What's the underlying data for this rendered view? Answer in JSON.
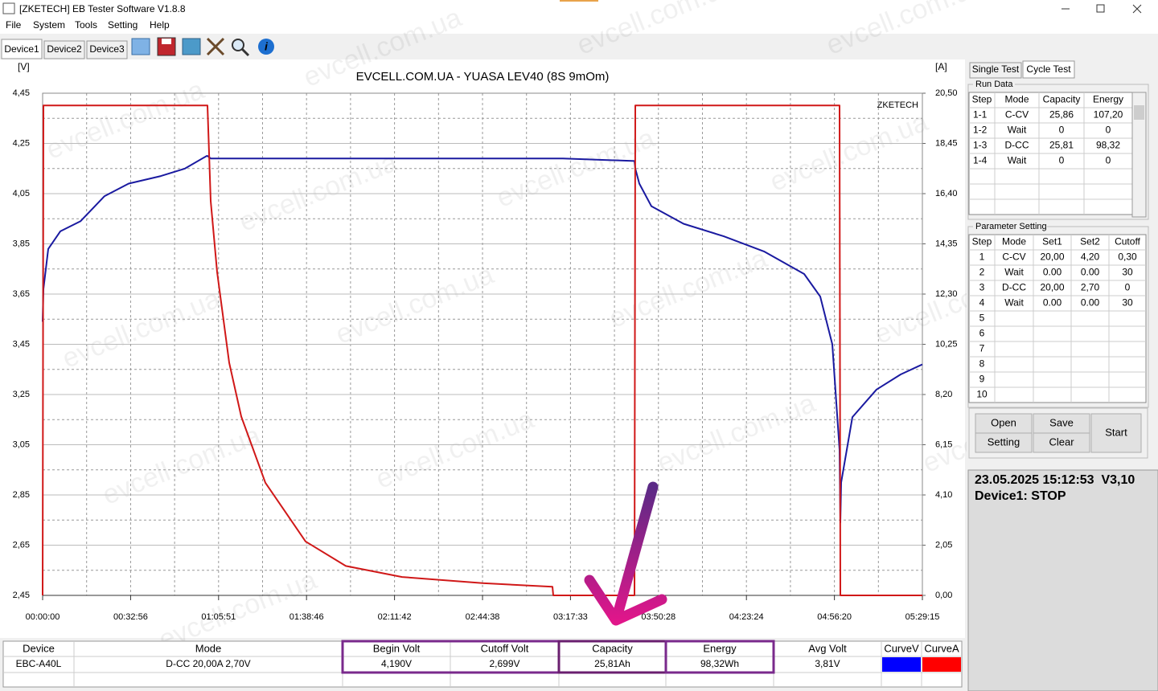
{
  "window": {
    "title": "[ZKETECH] EB Tester Software V1.8.8"
  },
  "menu": [
    "File",
    "System",
    "Tools",
    "Setting",
    "Help"
  ],
  "tabs": [
    "Device1",
    "Device2",
    "Device3"
  ],
  "background_watermark": "evcell.com.ua",
  "chart_data": {
    "type": "line",
    "title": "EVCELL.COM.UA - YUASA LEV40 (8S 9mOm)",
    "y_label": "[V]",
    "y2_label": "[A]",
    "watermark": "ZKETECH",
    "x": [
      0,
      18,
      126,
      397,
      849,
      1390,
      1932,
      2655,
      3196,
      3684,
      3702,
      3774,
      3919,
      4189,
      4460,
      5002,
      5905,
      6808,
      8072,
      9878,
      11449,
      11467,
      11684,
      13291,
      13309,
      13399,
      13670,
      14392,
      15295,
      16198,
      17101,
      17462,
      17733,
      17895,
      17913,
      17932,
      18184,
      18726,
      19268,
      19755
    ],
    "series": [
      {
        "name": "CurveV",
        "color": "#0000ff",
        "line_color": "#1a1aa0",
        "values": [
          3.54,
          3.67,
          3.83,
          3.9,
          3.94,
          4.04,
          4.09,
          4.12,
          4.15,
          4.2,
          4.2,
          4.19,
          4.19,
          4.19,
          4.19,
          4.19,
          4.19,
          4.19,
          4.19,
          4.19,
          4.19,
          4.19,
          4.19,
          4.18,
          4.15,
          4.09,
          4.0,
          3.93,
          3.88,
          3.82,
          3.73,
          3.64,
          3.45,
          3.03,
          2.74,
          2.9,
          3.16,
          3.27,
          3.33,
          3.37
        ]
      },
      {
        "name": "CurveA",
        "color": "#ff0000",
        "line_color": "#d01818",
        "axis": "y2",
        "values": [
          0,
          20,
          20,
          20,
          20,
          20,
          20,
          20,
          20,
          20,
          20,
          16.1,
          13.2,
          9.5,
          7.3,
          4.6,
          2.2,
          1.2,
          0.75,
          0.5,
          0.35,
          0,
          0,
          0,
          20,
          20,
          20,
          20,
          20,
          20,
          20,
          20,
          20,
          20,
          0,
          0,
          0,
          0,
          0,
          0
        ]
      }
    ],
    "xlim": [
      0,
      19755
    ],
    "xticks": [
      {
        "value": 0,
        "label": "00:00:00"
      },
      {
        "value": 1976,
        "label": "00:32:56"
      },
      {
        "value": 3951,
        "label": "01:05:51"
      },
      {
        "value": 5926,
        "label": "01:38:46"
      },
      {
        "value": 7902,
        "label": "02:11:42"
      },
      {
        "value": 9878,
        "label": "02:44:38"
      },
      {
        "value": 11853,
        "label": "03:17:33"
      },
      {
        "value": 13828,
        "label": "03:50:28"
      },
      {
        "value": 15804,
        "label": "04:23:24"
      },
      {
        "value": 17780,
        "label": "04:56:20"
      },
      {
        "value": 19755,
        "label": "05:29:15"
      }
    ],
    "ylim": [
      2.45,
      4.45
    ],
    "yticks": [
      {
        "value": 4.45,
        "label": "4,45"
      },
      {
        "value": 4.25,
        "label": "4,25"
      },
      {
        "value": 4.05,
        "label": "4,05"
      },
      {
        "value": 3.85,
        "label": "3,85"
      },
      {
        "value": 3.65,
        "label": "3,65"
      },
      {
        "value": 3.45,
        "label": "3,45"
      },
      {
        "value": 3.25,
        "label": "3,25"
      },
      {
        "value": 3.05,
        "label": "3,05"
      },
      {
        "value": 2.85,
        "label": "2,85"
      },
      {
        "value": 2.65,
        "label": "2,65"
      },
      {
        "value": 2.45,
        "label": "2,45"
      }
    ],
    "y2lim": [
      0,
      20.5
    ],
    "y2ticks": [
      {
        "value": 20.5,
        "label": "20,50"
      },
      {
        "value": 18.45,
        "label": "18,45"
      },
      {
        "value": 16.4,
        "label": "16,40"
      },
      {
        "value": 14.35,
        "label": "14,35"
      },
      {
        "value": 12.3,
        "label": "12,30"
      },
      {
        "value": 10.25,
        "label": "10,25"
      },
      {
        "value": 8.2,
        "label": "8,20"
      },
      {
        "value": 6.15,
        "label": "6,15"
      },
      {
        "value": 4.1,
        "label": "4,10"
      },
      {
        "value": 2.05,
        "label": "2,05"
      },
      {
        "value": 0,
        "label": "0,00"
      }
    ],
    "grid": true
  },
  "side_tabs": [
    "Single Test",
    "Cycle Test"
  ],
  "run_data": {
    "title": "Run Data",
    "columns": [
      "Step",
      "Mode",
      "Capacity",
      "Energy"
    ],
    "rows": [
      [
        "1-1",
        "C-CV",
        "25,86",
        "107,20"
      ],
      [
        "1-2",
        "Wait",
        "0",
        "0"
      ],
      [
        "1-3",
        "D-CC",
        "25,81",
        "98,32"
      ],
      [
        "1-4",
        "Wait",
        "0",
        "0"
      ]
    ]
  },
  "parameter_setting": {
    "title": "Parameter Setting",
    "columns": [
      "Step",
      "Mode",
      "Set1",
      "Set2",
      "Cutoff"
    ],
    "rows": [
      [
        "1",
        "C-CV",
        "20,00",
        "4,20",
        "0,30"
      ],
      [
        "2",
        "Wait",
        "0.00",
        "0.00",
        "30"
      ],
      [
        "3",
        "D-CC",
        "20,00",
        "2,70",
        "0"
      ],
      [
        "4",
        "Wait",
        "0.00",
        "0.00",
        "30"
      ],
      [
        "5"
      ],
      [
        "6"
      ],
      [
        "7"
      ],
      [
        "8"
      ],
      [
        "9"
      ],
      [
        "10"
      ]
    ]
  },
  "buttons": [
    "Open",
    "Save",
    "Setting",
    "Clear",
    "Start"
  ],
  "status": [
    "23.05.2025 15:12:53  V3,10",
    "Device1: STOP"
  ],
  "summary": {
    "columns": [
      "Device",
      "Mode",
      "Begin Volt",
      "Cutoff Volt",
      "Capacity",
      "Energy",
      "Avg Volt"
    ],
    "rows": [
      [
        "EBC-A40L",
        "D-CC 20,00A  2,70V",
        "4,190V",
        "2,699V",
        "25,81Ah",
        "98,32Wh",
        "3,81V"
      ]
    ]
  }
}
